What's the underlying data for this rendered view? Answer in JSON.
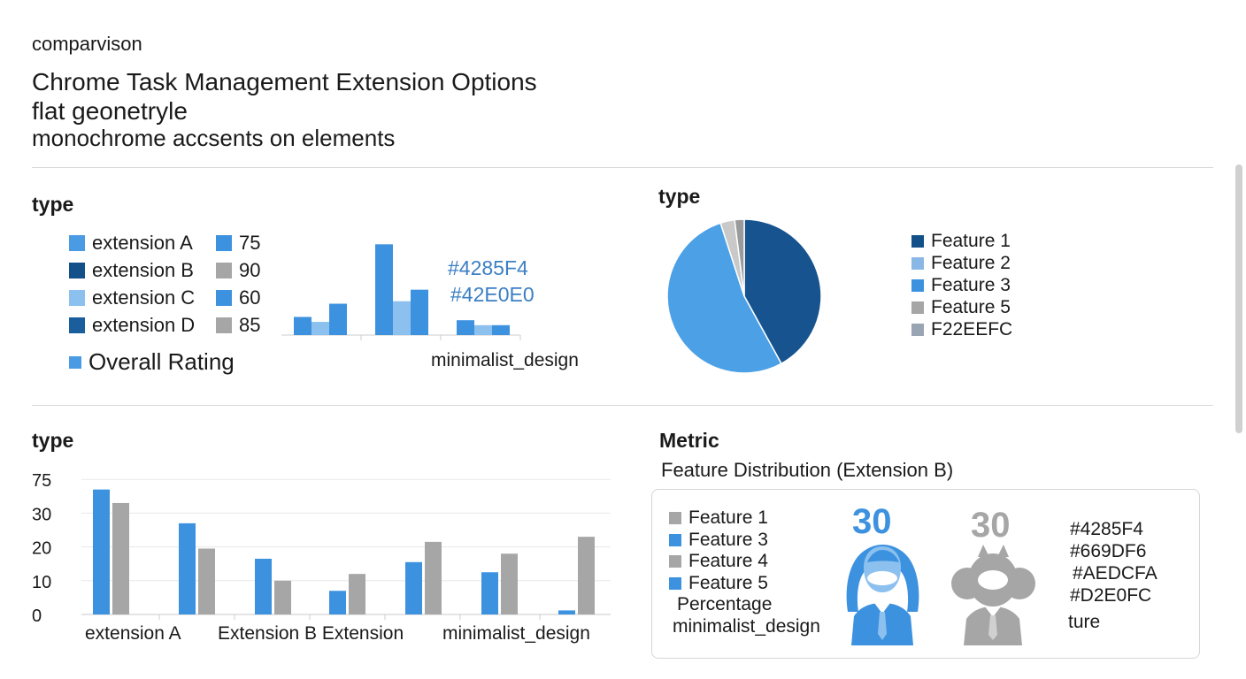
{
  "header": {
    "small": "comparvison",
    "title": "Chrome Task Management Extension Options",
    "line2": "flat geonetryle",
    "line3": "monochrome accsents on elements"
  },
  "panel1": {
    "title": "type",
    "legend": [
      {
        "label": "extension A",
        "color": "#4a9be3"
      },
      {
        "label": "extension B",
        "color": "#13508a"
      },
      {
        "label": "extension C",
        "color": "#8cc0ee"
      },
      {
        "label": "extension D",
        "color": "#1a5e9e"
      }
    ],
    "legend_values": [
      {
        "label": "75",
        "color": "#3d92e0"
      },
      {
        "label": "90",
        "color": "#a6a6a6"
      },
      {
        "label": "60",
        "color": "#3d92e0"
      },
      {
        "label": "85",
        "color": "#a6a6a6"
      }
    ],
    "overall_label": "Overall Rating",
    "codes": [
      "#4285F4",
      "#42E0E0"
    ],
    "xlabel": "minimalist_design"
  },
  "panel2": {
    "title": "type",
    "legend": [
      {
        "label": "Feature 1",
        "color": "#13508a"
      },
      {
        "label": "Feature 2",
        "color": "#8ab8e6"
      },
      {
        "label": "Feature 3",
        "color": "#3d92e0"
      },
      {
        "label": "Feature 5",
        "color": "#a6a6a6"
      },
      {
        "label": "F22EEFC",
        "color": "#9aa5b4"
      }
    ]
  },
  "panel3": {
    "title": "type",
    "xlabels": [
      "extension A",
      "Extension B Extension",
      "minimalist_design"
    ]
  },
  "panel4": {
    "title": "Metric",
    "subtitle": "Feature Distribution (Extension B)",
    "legend": [
      {
        "label": "Feature 1",
        "color": "#a6a6a6"
      },
      {
        "label": "Feature 3",
        "color": "#3d92e0"
      },
      {
        "label": "Feature 4",
        "color": "#a6a6a6"
      },
      {
        "label": "Feature 5",
        "color": "#3d92e0"
      }
    ],
    "extra_labels": [
      "Percentage",
      "minimalist_design"
    ],
    "stat_blue": "30",
    "stat_gray": "30",
    "codes": [
      "#4285F4",
      "#669DF6",
      "#AEDCFA",
      "#D2E0FC"
    ],
    "code_extra": "ture",
    "blue_color": "#3d92e0",
    "gray_color": "#a6a6a6"
  },
  "chart_data": [
    {
      "type": "bar",
      "categories": [
        "",
        "",
        ""
      ],
      "series": [
        {
          "color": "#3d92e0",
          "values": [
            22,
            110,
            18
          ]
        },
        {
          "color": "#8cc0ee",
          "values": [
            16,
            41,
            12
          ]
        },
        {
          "color": "#3d92e0",
          "values": [
            38,
            55,
            12
          ]
        }
      ],
      "xlabel": "minimalist_design",
      "ylim": [
        0,
        120
      ]
    },
    {
      "type": "pie",
      "slices": [
        {
          "label": "Feature 1",
          "value": 42,
          "color": "#16538f"
        },
        {
          "label": "Feature 3",
          "value": 53,
          "color": "#4ba0e6"
        },
        {
          "label": "Feature 5",
          "value": 3,
          "color": "#c9c9c9"
        },
        {
          "label": "F22EEFC",
          "value": 2,
          "color": "#9a9a9a"
        }
      ]
    },
    {
      "type": "bar",
      "categories": [
        "extension A",
        "",
        "Extension B Extension",
        "",
        "",
        "minimalist_design",
        ""
      ],
      "yticks": [
        0,
        10,
        20,
        30,
        75
      ],
      "series": [
        {
          "color": "#3d92e0",
          "values": [
            37,
            27,
            16.5,
            7,
            15.5,
            12.5,
            1.2
          ]
        },
        {
          "color": "#a6a6a6",
          "values": [
            33,
            19.5,
            10,
            12,
            21.5,
            18,
            23
          ]
        }
      ],
      "grid": true
    }
  ]
}
